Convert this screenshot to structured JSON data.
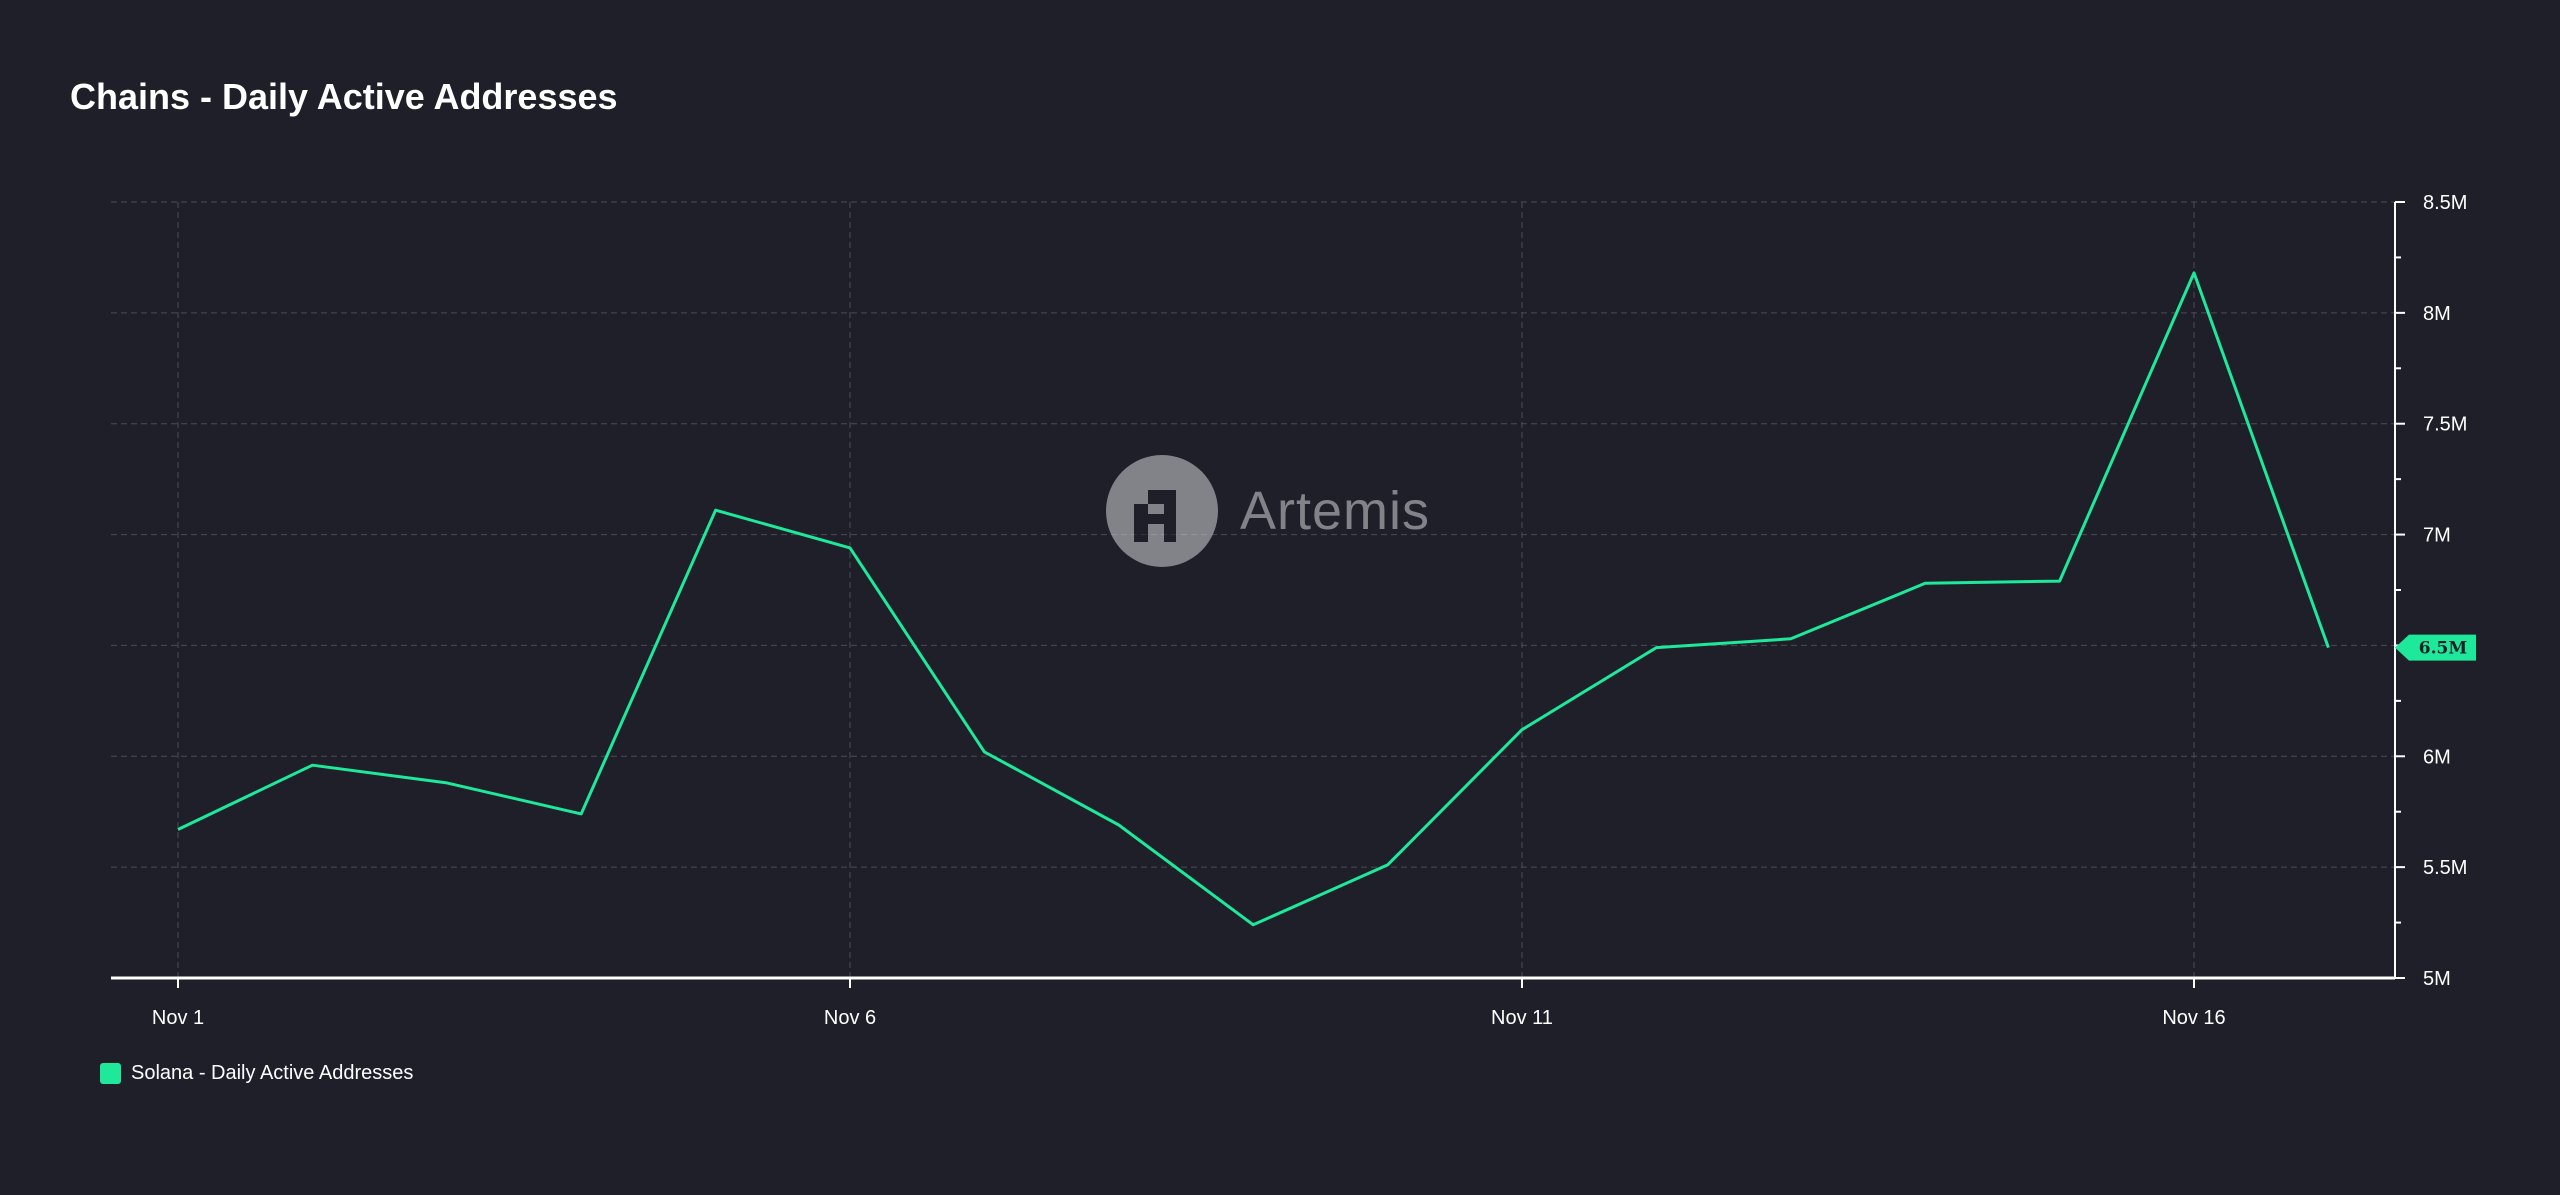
{
  "title": "Chains - Daily Active Addresses",
  "watermark": {
    "text": "Artemis",
    "icon": "artemis-logo-icon"
  },
  "colors": {
    "background": "#1e1f29",
    "series": "#1ee89a",
    "grid": "#4a4b56",
    "axis": "#ffffff"
  },
  "chart_data": {
    "type": "line",
    "title": "Chains - Daily Active Addresses",
    "xlabel": "",
    "ylabel": "",
    "x": [
      "Nov 1",
      "Nov 2",
      "Nov 3",
      "Nov 4",
      "Nov 5",
      "Nov 6",
      "Nov 7",
      "Nov 8",
      "Nov 9",
      "Nov 10",
      "Nov 11",
      "Nov 12",
      "Nov 13",
      "Nov 14",
      "Nov 15",
      "Nov 16",
      "Nov 17"
    ],
    "x_ticks": [
      "Nov 1",
      "Nov 6",
      "Nov 11",
      "Nov 16"
    ],
    "ylim": [
      5000000,
      8500000
    ],
    "y_ticks": [
      5000000,
      5500000,
      6000000,
      6500000,
      7000000,
      7500000,
      8000000,
      8500000
    ],
    "y_tick_labels": [
      "5M",
      "5.5M",
      "6M",
      "6.5M",
      "7M",
      "7.5M",
      "8M",
      "8.5M"
    ],
    "series": [
      {
        "name": "Solana - Daily Active Addresses",
        "color": "#1ee89a",
        "values": [
          5670000,
          5960000,
          5880000,
          5740000,
          7110000,
          6940000,
          6020000,
          5690000,
          5240000,
          5510000,
          6120000,
          6490000,
          6530000,
          6780000,
          6790000,
          8180000,
          6490000
        ]
      }
    ],
    "last_value_label": "6.5M",
    "grid": true,
    "legend_position": "bottom-left",
    "y_axis_position": "right"
  }
}
